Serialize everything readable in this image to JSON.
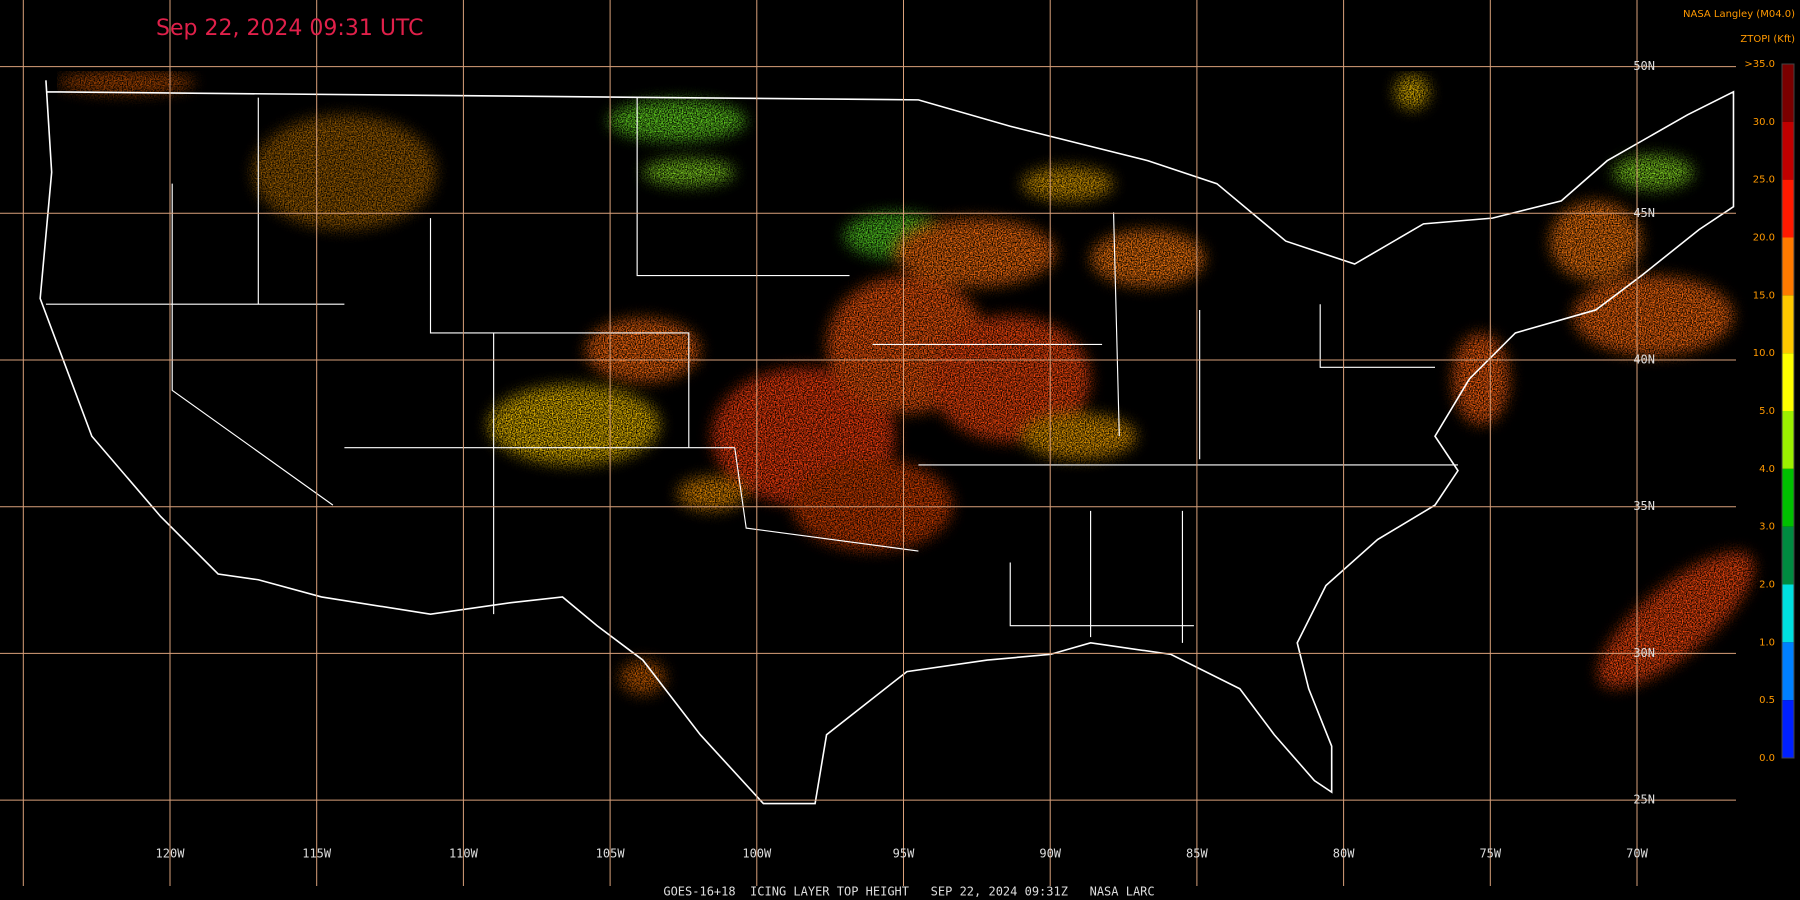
{
  "header": {
    "timestamp": "Sep 22, 2024 09:31 UTC",
    "source": "NASA Langley (M04.0)",
    "product": "ZTOPI (Kft)"
  },
  "footer": "GOES-16+18  ICING LAYER TOP HEIGHT   SEP 22, 2024 09:31Z   NASA LARC",
  "map": {
    "longitude_labels": [
      "120W",
      "115W",
      "110W",
      "105W",
      "100W",
      "95W",
      "90W",
      "85W",
      "80W",
      "75W",
      "70W"
    ],
    "latitude_labels": [
      "50N",
      "45N",
      "40N",
      "35N",
      "30N",
      "25N"
    ],
    "grid_color": "#d9a07a"
  },
  "colorbar": {
    "labels": [
      ">35.0",
      "30.0",
      "25.0",
      "20.0",
      "15.0",
      "10.0",
      "5.0",
      "4.0",
      "3.0",
      "2.0",
      "1.0",
      "0.5",
      "0.0"
    ],
    "colors": [
      "#7a0000",
      "#c00000",
      "#ff1a00",
      "#ff7a00",
      "#ffc800",
      "#ffff00",
      "#9cf000",
      "#00c000",
      "#008a40",
      "#00e0e0",
      "#0080ff",
      "#0020ff",
      "#9040ff"
    ]
  }
}
